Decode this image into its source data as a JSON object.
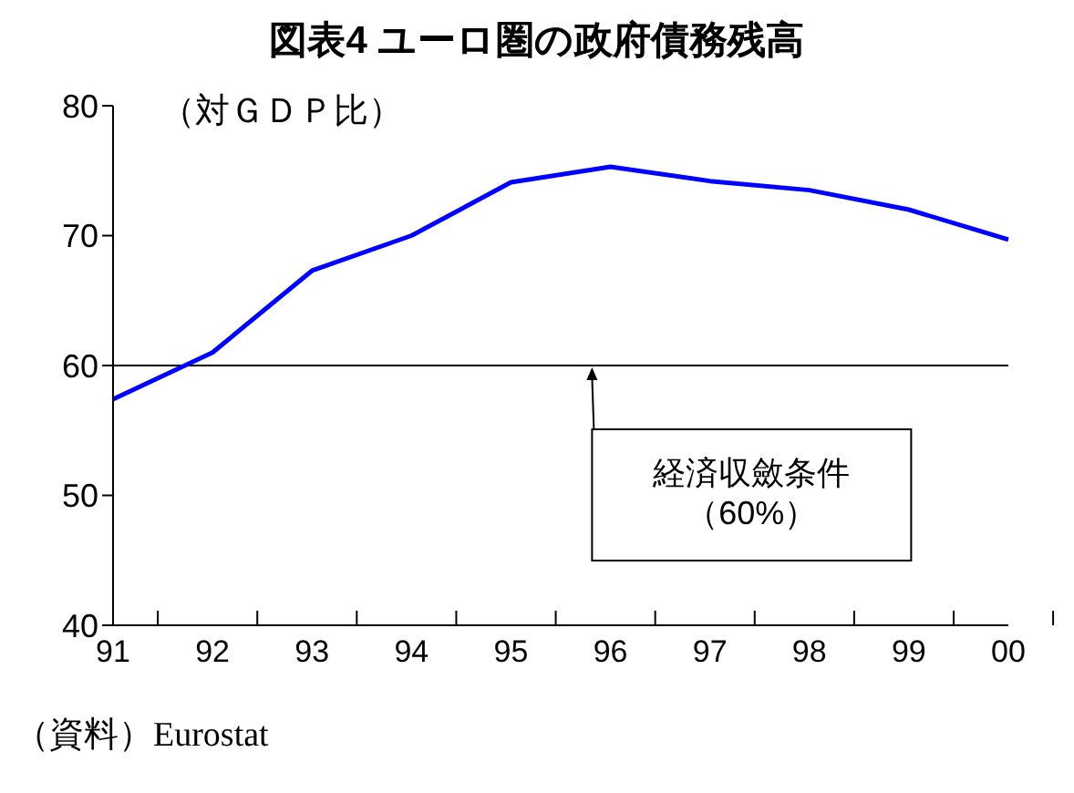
{
  "chart_data": {
    "type": "line",
    "title": "図表4 ユーロ圏の政府債務残高",
    "ylabel": "（対ＧＤＰ比）",
    "categories": [
      "91",
      "92",
      "93",
      "94",
      "95",
      "96",
      "97",
      "98",
      "99",
      "00"
    ],
    "series": [
      {
        "color": "#0000ff",
        "values": [
          57.4,
          61.0,
          67.3,
          70.0,
          74.1,
          75.3,
          74.2,
          73.5,
          72.0,
          69.7
        ]
      }
    ],
    "ylim": [
      40,
      80
    ],
    "yticks": [
      40,
      50,
      60,
      70,
      80
    ],
    "marker": "none",
    "line_style": "solid",
    "ref_lines": [
      {
        "axis": "y",
        "value": 60,
        "label": "経済収斂条件（60%）",
        "color": "#000000"
      }
    ],
    "annotations": [
      "（資料）Eurostat"
    ]
  }
}
